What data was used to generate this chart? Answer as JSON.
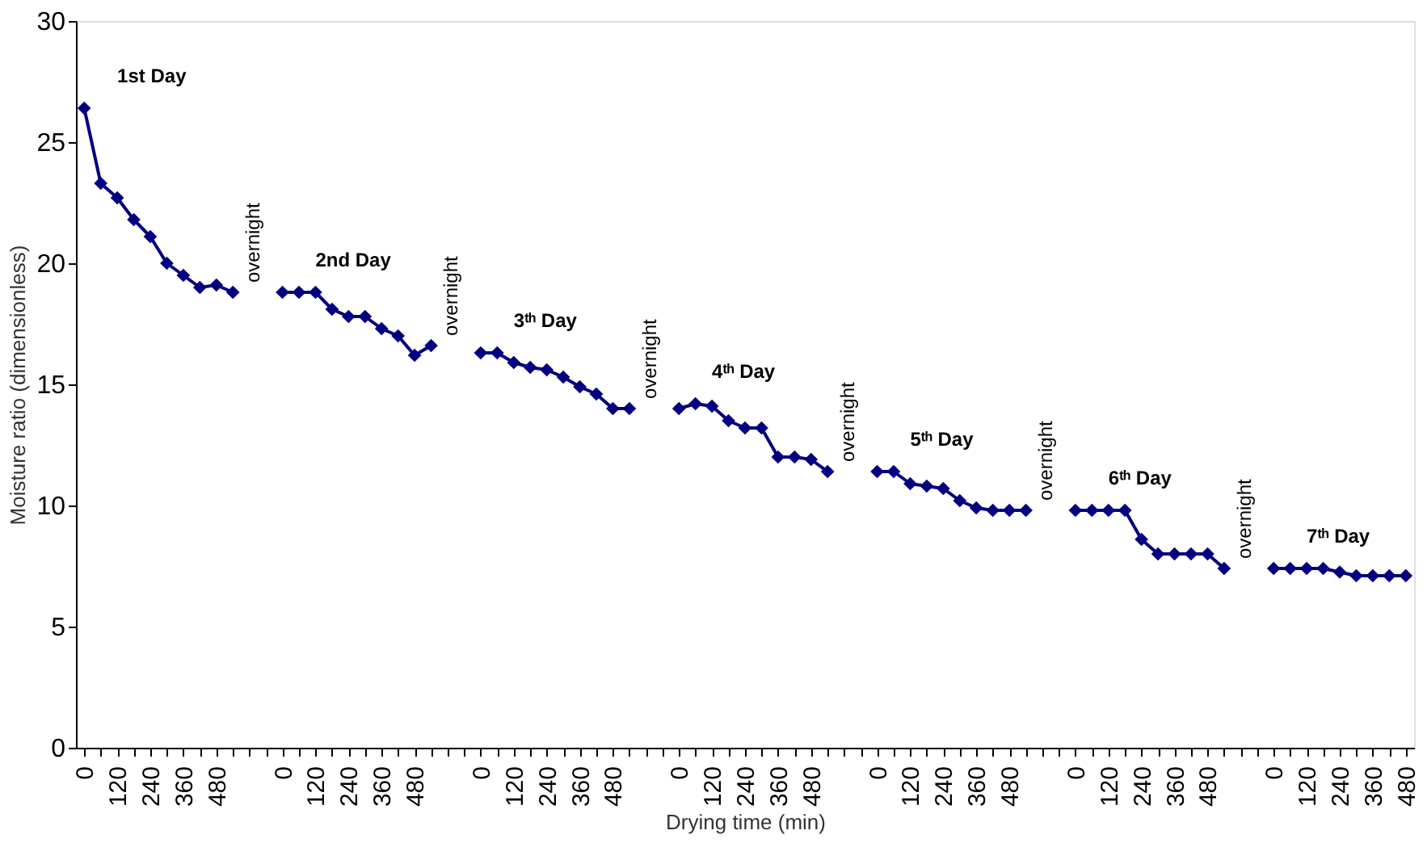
{
  "chart_data": {
    "type": "line",
    "xlabel": "Drying time (min)",
    "ylabel": "Moisture ratio (dimensionless)",
    "categories": [
      "0",
      null,
      "120",
      null,
      "240",
      null,
      "360",
      null,
      "480",
      null,
      null,
      null,
      "0",
      null,
      "120",
      null,
      "240",
      null,
      "360",
      null,
      "480",
      null,
      null,
      null,
      "0",
      null,
      "120",
      null,
      "240",
      null,
      "360",
      null,
      "480",
      null,
      null,
      null,
      "0",
      null,
      "120",
      null,
      "240",
      null,
      "360",
      null,
      "480",
      null,
      null,
      null,
      "0",
      null,
      "120",
      null,
      "240",
      null,
      "360",
      null,
      "480",
      null,
      null,
      null,
      "0",
      null,
      "120",
      null,
      "240",
      null,
      "360",
      null,
      "480",
      null,
      null,
      null,
      "0",
      null,
      "120",
      null,
      "240",
      null,
      "360",
      null,
      "480"
    ],
    "series": [
      {
        "color": "#000080",
        "values": [
          26.4,
          23.3,
          22.7,
          21.8,
          21.1,
          20.0,
          19.5,
          19.0,
          19.1,
          18.8,
          null,
          null,
          18.8,
          18.8,
          18.8,
          18.1,
          17.8,
          17.8,
          17.3,
          17.0,
          16.2,
          16.6,
          null,
          null,
          16.3,
          16.3,
          15.9,
          15.7,
          15.6,
          15.3,
          14.9,
          14.6,
          14.0,
          14.0,
          null,
          null,
          14.0,
          14.2,
          14.1,
          13.5,
          13.2,
          13.2,
          12.0,
          12.0,
          11.9,
          11.4,
          null,
          null,
          11.4,
          11.4,
          10.9,
          10.8,
          10.7,
          10.2,
          9.9,
          9.8,
          9.8,
          9.8,
          null,
          null,
          9.8,
          9.8,
          9.8,
          9.8,
          8.6,
          8.0,
          8.0,
          8.0,
          8.0,
          7.4,
          null,
          null,
          7.4,
          7.4,
          7.4,
          7.4,
          7.25,
          7.1,
          7.1,
          7.1,
          7.1
        ]
      }
    ],
    "annotations": [
      "1st Day",
      "overnight",
      "2nd Day",
      "overnight",
      "3ᵗʰ Day",
      "overnight",
      "4ᵗʰ Day",
      "overnight",
      "5ᵗʰ Day",
      "overnight",
      "6ᵗʰ Day",
      "overnight",
      "7ᵗʰ Day"
    ],
    "ylim": [
      0,
      30
    ],
    "yticks": [
      0,
      5,
      10,
      15,
      20,
      25,
      30
    ],
    "marker": "diamond",
    "line_style": "solid"
  }
}
